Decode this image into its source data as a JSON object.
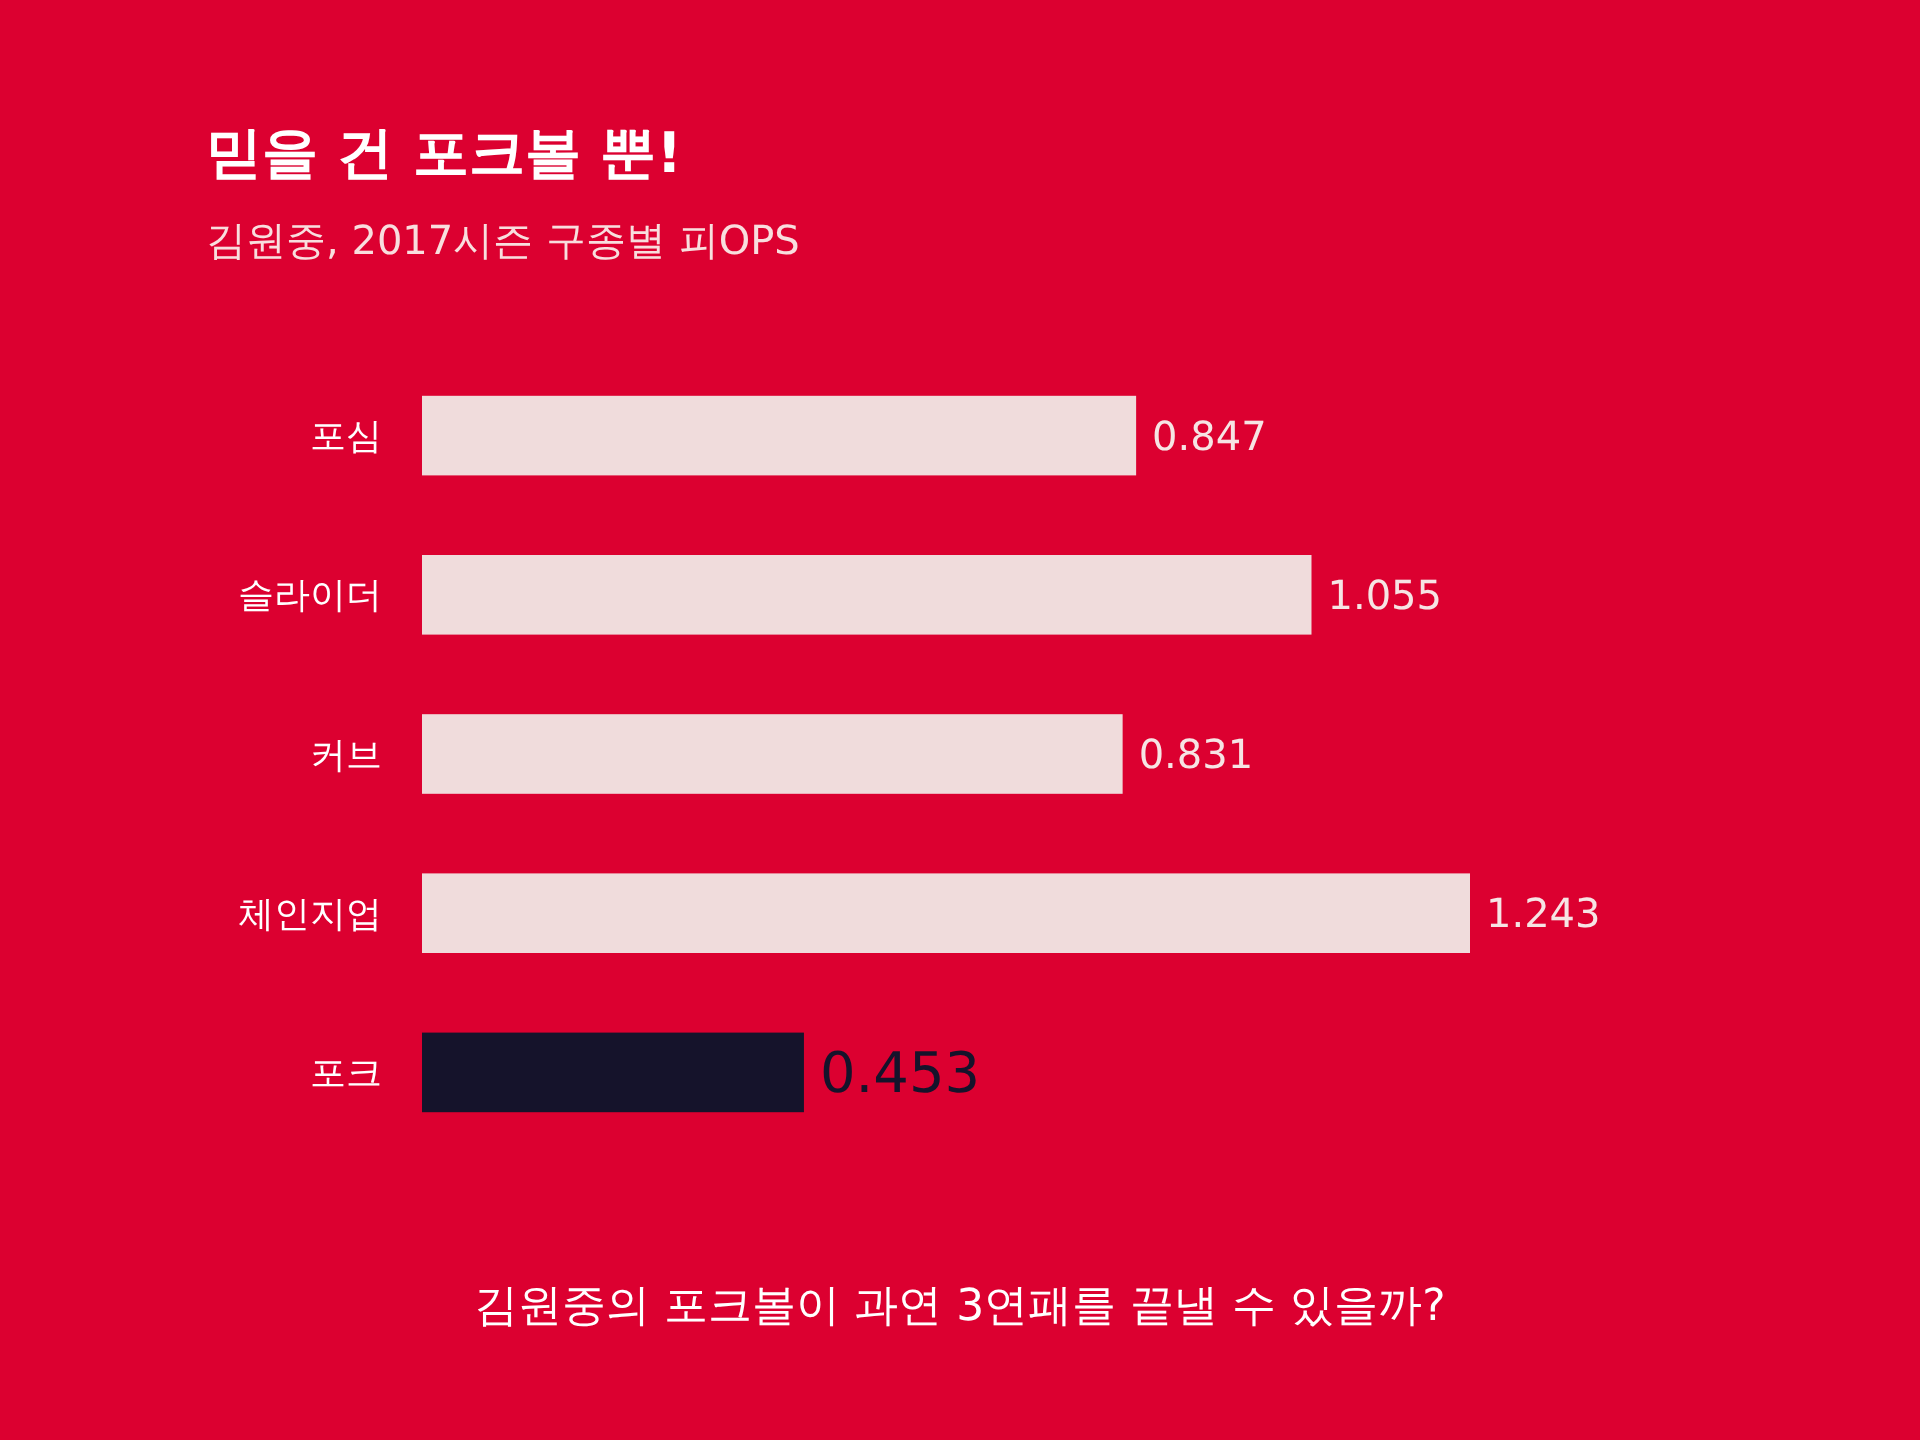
{
  "chart_data": {
    "type": "bar",
    "orientation": "horizontal",
    "title": "믿을 건 포크볼 뿐!",
    "subtitle": "김원중, 2017시즌 구종별 피OPS",
    "categories": [
      "포심",
      "슬라이더",
      "커브",
      "체인지업",
      "포크"
    ],
    "values": [
      0.847,
      1.055,
      0.831,
      1.243,
      0.453
    ],
    "colors": [
      "#f0dcdc",
      "#f0dcdc",
      "#f0dcdc",
      "#f0dcdc",
      "#15132b"
    ],
    "data_labels": true,
    "annotations": [
      "김원중의 포크볼이 과연 3연패를 끝낼 수 있을까?"
    ]
  }
}
